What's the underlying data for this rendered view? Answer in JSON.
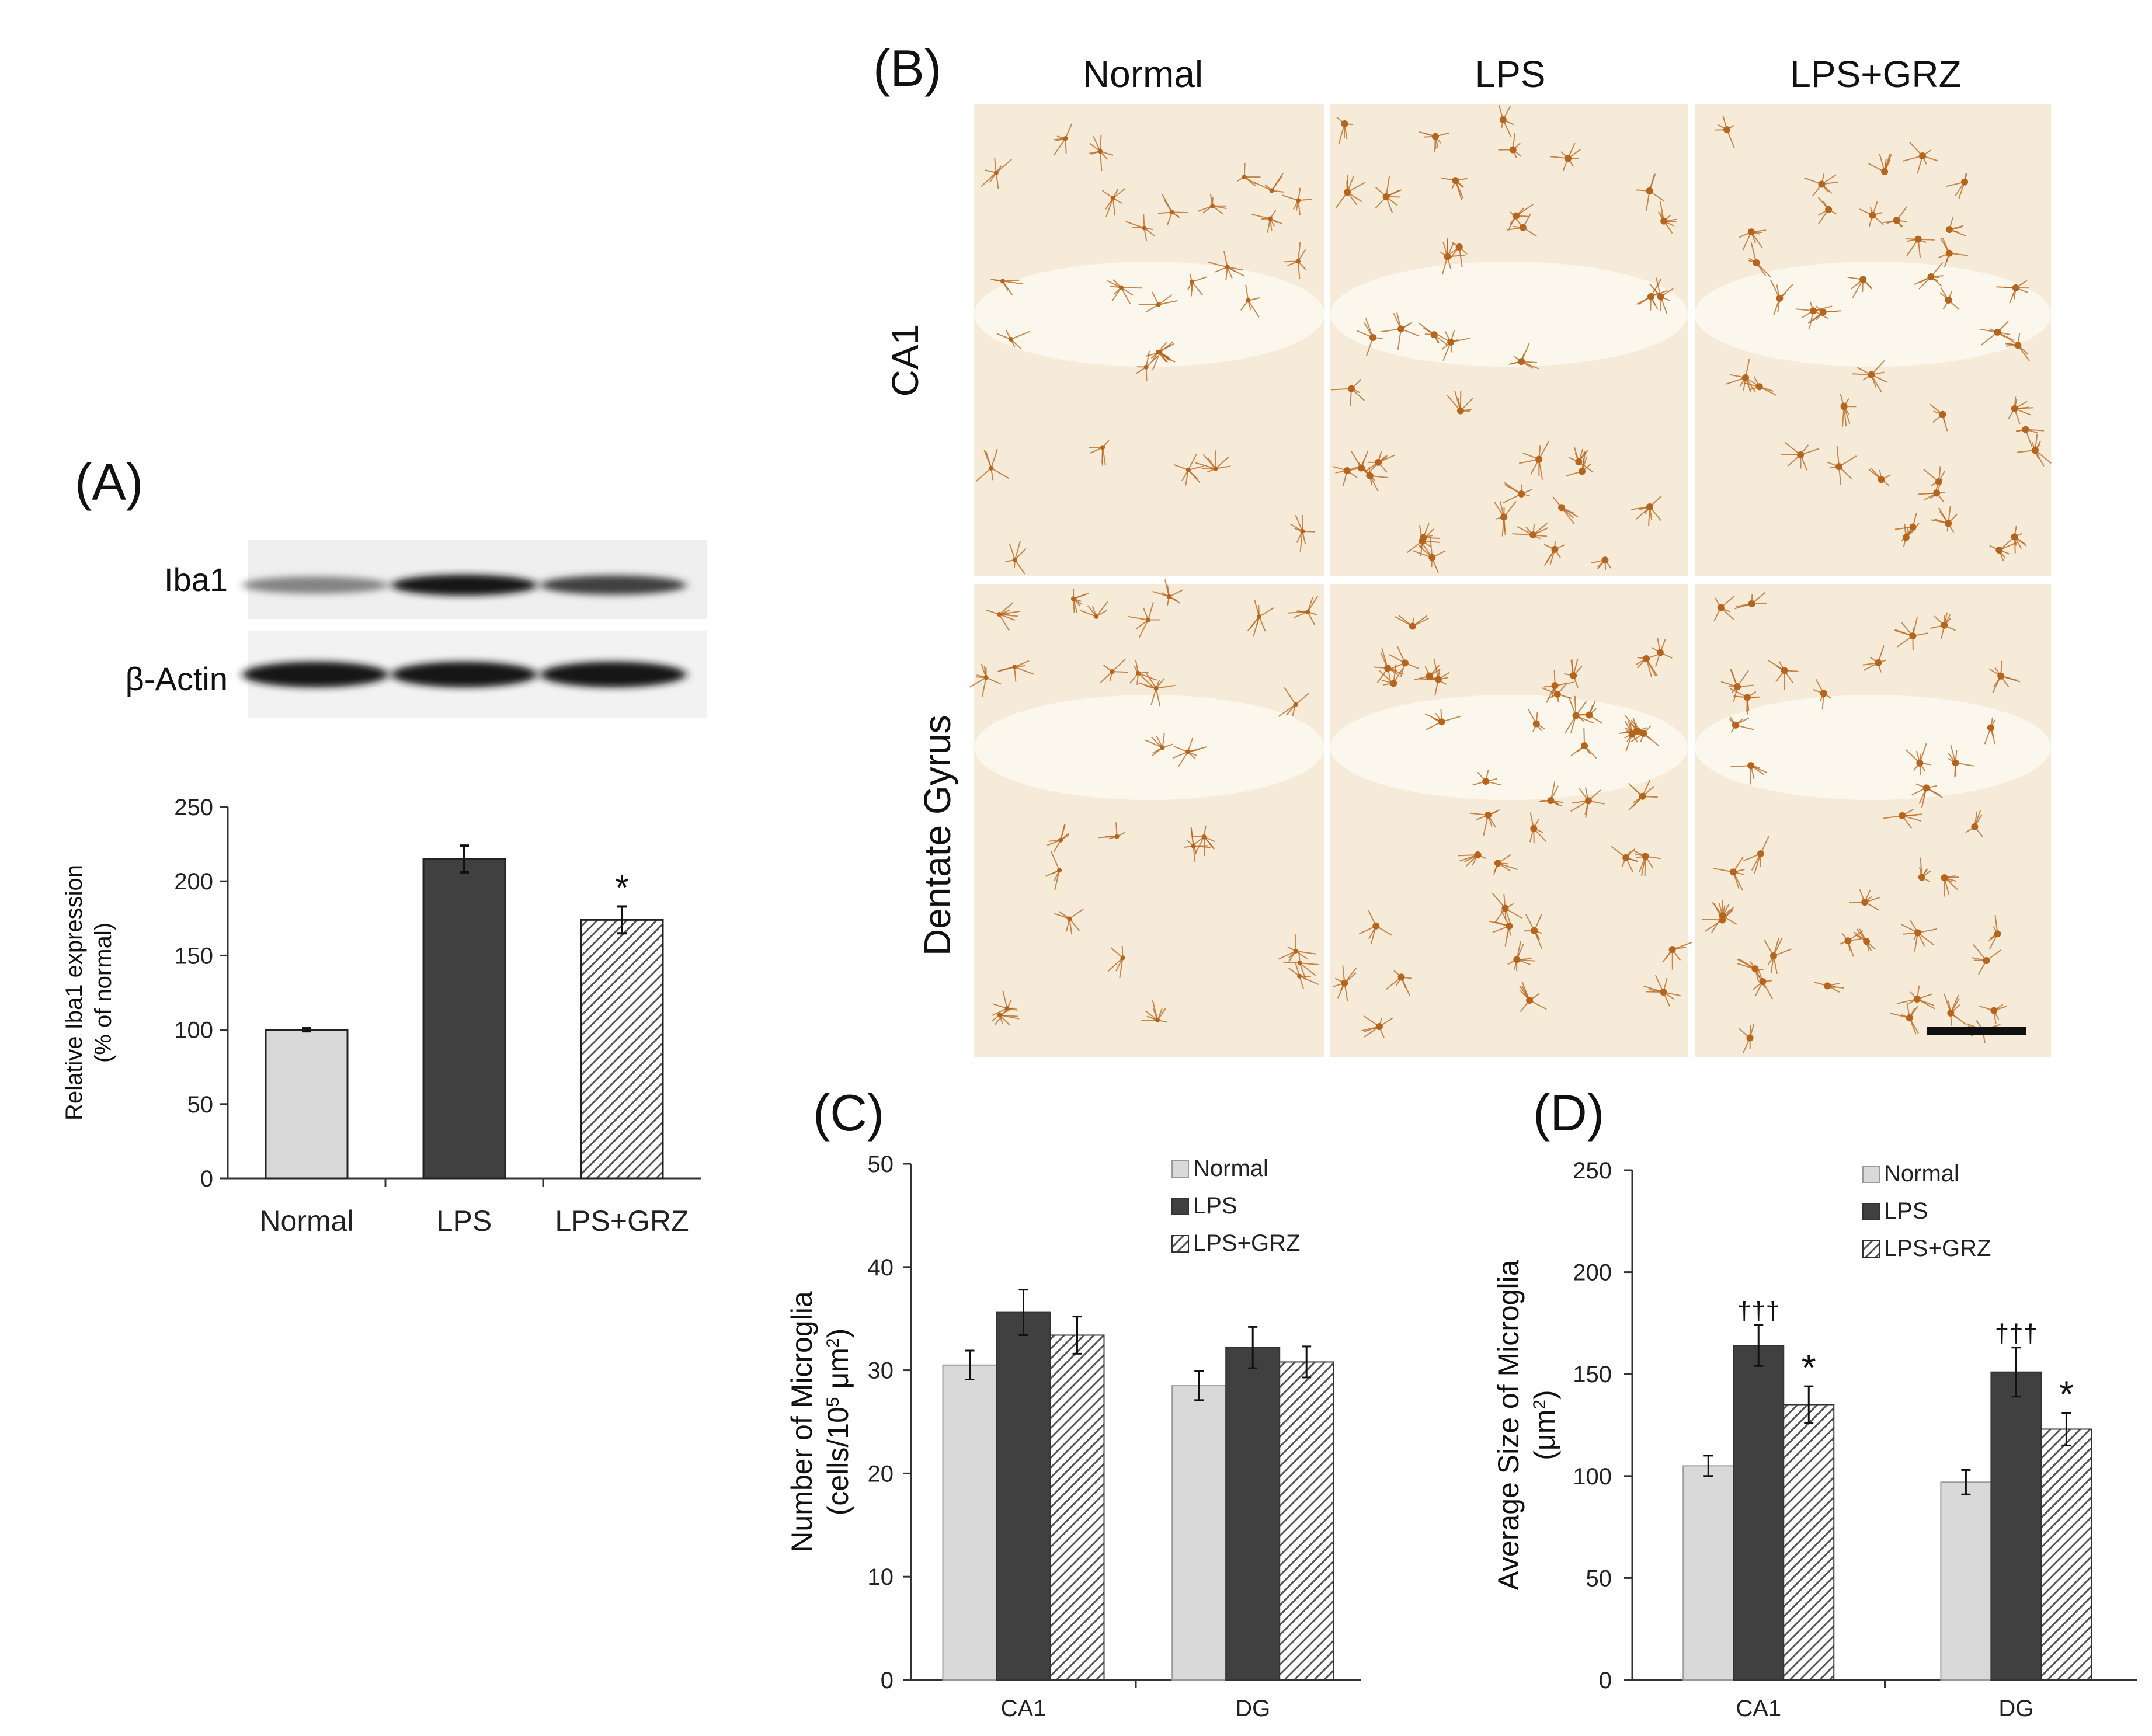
{
  "panels": {
    "a": {
      "label": "(A)"
    },
    "b": {
      "label": "(B)"
    },
    "c": {
      "label": "(C)"
    },
    "d": {
      "label": "(D)"
    }
  },
  "blot": {
    "rows": [
      {
        "name": "Iba1",
        "intensity": [
          0.35,
          1.0,
          0.75
        ]
      },
      {
        "name": "β-Actin",
        "intensity": [
          1.0,
          1.0,
          1.0
        ]
      }
    ]
  },
  "micrographs": {
    "columns": [
      "Normal",
      "LPS",
      "LPS+GRZ"
    ],
    "rows": [
      "CA1",
      "Dentate Gyrus"
    ]
  },
  "colors": {
    "normal": "#d9d9d9",
    "lps": "#404040",
    "lps_grz_hatch": "#555555",
    "stain": "#b5651d",
    "tissue": "#f6ead8"
  },
  "chart_data": [
    {
      "id": "A",
      "type": "bar",
      "categories": [
        "Normal",
        "LPS",
        "LPS+GRZ"
      ],
      "series": [
        {
          "values": [
            100,
            215,
            174
          ],
          "errors": [
            1,
            9,
            9
          ],
          "annotations": [
            "",
            "",
            "*"
          ]
        }
      ],
      "ylabel": "Relative Iba1 expression\n(% of normal)",
      "xlabel": "",
      "ylim": [
        0,
        250
      ],
      "yticks": [
        0,
        50,
        100,
        150,
        200,
        250
      ],
      "legend": "none"
    },
    {
      "id": "C",
      "type": "bar",
      "categories": [
        "CA1",
        "DG"
      ],
      "series": [
        {
          "name": "Normal",
          "values": [
            30.5,
            28.5
          ],
          "errors": [
            1.4,
            1.4
          ]
        },
        {
          "name": "LPS",
          "values": [
            35.6,
            32.2
          ],
          "errors": [
            2.2,
            2.0
          ]
        },
        {
          "name": "LPS+GRZ",
          "values": [
            33.4,
            30.8
          ],
          "errors": [
            1.8,
            1.5
          ]
        }
      ],
      "ylabel": "Number of Microglia\n(cells/10^5 μm^2)",
      "xlabel": "",
      "ylim": [
        0,
        50
      ],
      "yticks": [
        0,
        10,
        20,
        30,
        40,
        50
      ],
      "legend": "top-right"
    },
    {
      "id": "D",
      "type": "bar",
      "categories": [
        "CA1",
        "DG"
      ],
      "series": [
        {
          "name": "Normal",
          "values": [
            105,
            97
          ],
          "errors": [
            5,
            6
          ],
          "annotations": [
            "",
            ""
          ]
        },
        {
          "name": "LPS",
          "values": [
            164,
            151
          ],
          "errors": [
            10,
            12
          ],
          "annotations": [
            "†††",
            "†††"
          ]
        },
        {
          "name": "LPS+GRZ",
          "values": [
            135,
            123
          ],
          "errors": [
            9,
            8
          ],
          "annotations": [
            "*",
            "*"
          ]
        }
      ],
      "ylabel": "Average Size of Microglia\n(μm^2)",
      "xlabel": "",
      "ylim": [
        0,
        250
      ],
      "yticks": [
        0,
        50,
        100,
        150,
        200,
        250
      ],
      "legend": "top-right"
    }
  ]
}
